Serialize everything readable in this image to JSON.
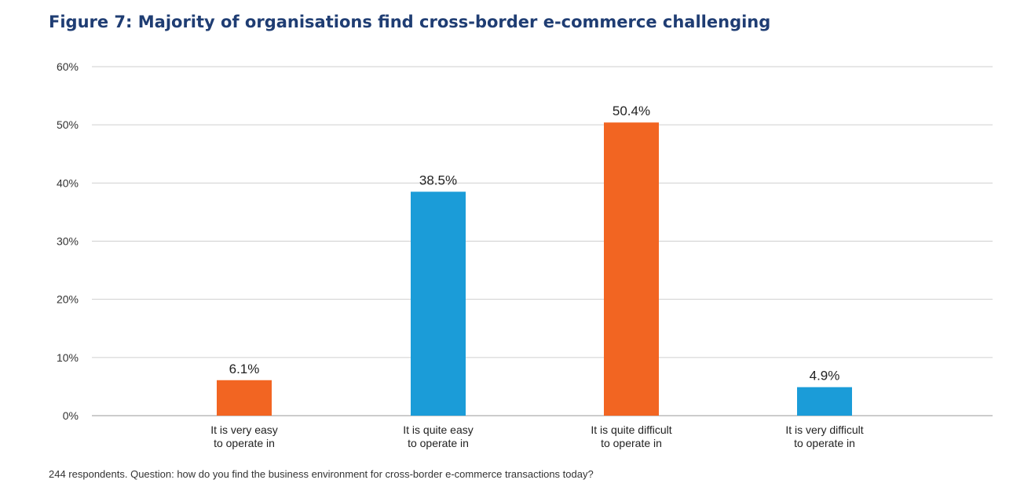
{
  "chart_data": {
    "type": "bar",
    "title": "Figure 7: Majority of organisations find cross-border e-commerce challenging",
    "categories": [
      [
        "It is very easy",
        "to operate in"
      ],
      [
        "It is quite easy",
        "to operate in"
      ],
      [
        "It is quite difficult",
        "to operate in"
      ],
      [
        "It is very difficult",
        "to operate in"
      ]
    ],
    "values": [
      6.1,
      38.5,
      50.4,
      4.9
    ],
    "data_labels": [
      "6.1%",
      "38.5%",
      "50.4%",
      "4.9%"
    ],
    "bar_colors": [
      "#f26522",
      "#1b9cd8",
      "#f26522",
      "#1b9cd8"
    ],
    "ylim": [
      0,
      60
    ],
    "yticks": [
      0,
      10,
      20,
      30,
      40,
      50,
      60
    ],
    "ytick_labels": [
      "0%",
      "10%",
      "20%",
      "30%",
      "40%",
      "50%",
      "60%"
    ],
    "xlabel": "",
    "ylabel": "",
    "grid": true,
    "legend": "none",
    "footnote": "244 respondents. Question: how do you find the business environment for cross-border e-commerce transactions today?"
  }
}
